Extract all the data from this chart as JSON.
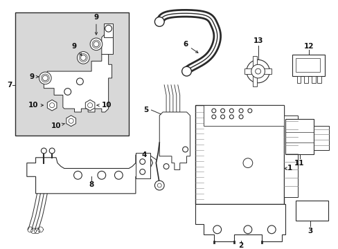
{
  "bg_color": "#ffffff",
  "fig_width": 4.89,
  "fig_height": 3.6,
  "dpi": 100,
  "line_color": "#2a2a2a",
  "gray_fill": "#d8d8d8",
  "label_fs": 7.5
}
